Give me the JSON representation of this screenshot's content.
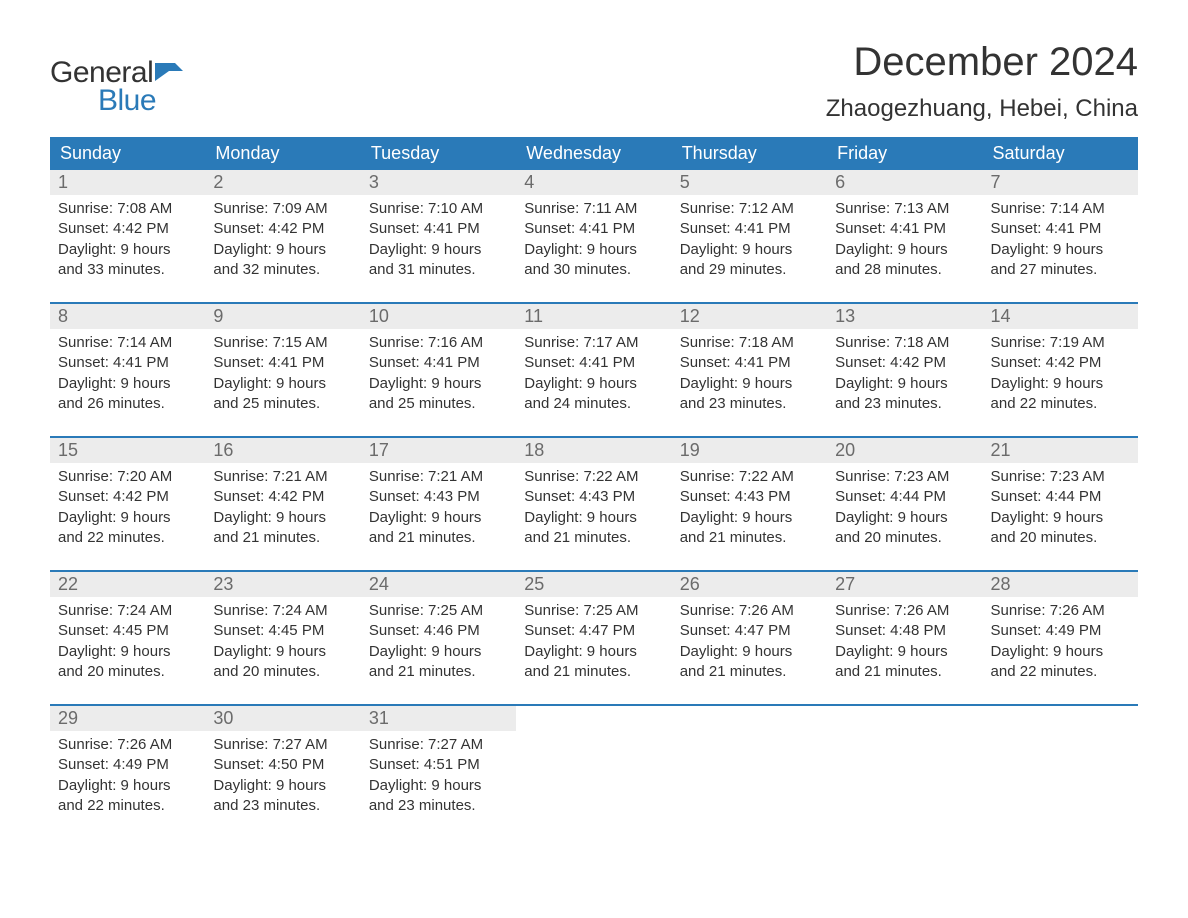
{
  "logo": {
    "text_general": "General",
    "text_blue": "Blue",
    "flag_color": "#2a7ab8"
  },
  "title": "December 2024",
  "location": "Zhaogezhuang, Hebei, China",
  "colors": {
    "header_bg": "#2a7ab8",
    "header_text": "#ffffff",
    "date_bg": "#ececec",
    "date_text": "#6b6b6b",
    "body_text": "#333333",
    "week_border": "#2a7ab8",
    "page_bg": "#ffffff"
  },
  "day_names": [
    "Sunday",
    "Monday",
    "Tuesday",
    "Wednesday",
    "Thursday",
    "Friday",
    "Saturday"
  ],
  "weeks": [
    [
      {
        "date": "1",
        "sunrise": "Sunrise: 7:08 AM",
        "sunset": "Sunset: 4:42 PM",
        "d1": "Daylight: 9 hours",
        "d2": "and 33 minutes."
      },
      {
        "date": "2",
        "sunrise": "Sunrise: 7:09 AM",
        "sunset": "Sunset: 4:42 PM",
        "d1": "Daylight: 9 hours",
        "d2": "and 32 minutes."
      },
      {
        "date": "3",
        "sunrise": "Sunrise: 7:10 AM",
        "sunset": "Sunset: 4:41 PM",
        "d1": "Daylight: 9 hours",
        "d2": "and 31 minutes."
      },
      {
        "date": "4",
        "sunrise": "Sunrise: 7:11 AM",
        "sunset": "Sunset: 4:41 PM",
        "d1": "Daylight: 9 hours",
        "d2": "and 30 minutes."
      },
      {
        "date": "5",
        "sunrise": "Sunrise: 7:12 AM",
        "sunset": "Sunset: 4:41 PM",
        "d1": "Daylight: 9 hours",
        "d2": "and 29 minutes."
      },
      {
        "date": "6",
        "sunrise": "Sunrise: 7:13 AM",
        "sunset": "Sunset: 4:41 PM",
        "d1": "Daylight: 9 hours",
        "d2": "and 28 minutes."
      },
      {
        "date": "7",
        "sunrise": "Sunrise: 7:14 AM",
        "sunset": "Sunset: 4:41 PM",
        "d1": "Daylight: 9 hours",
        "d2": "and 27 minutes."
      }
    ],
    [
      {
        "date": "8",
        "sunrise": "Sunrise: 7:14 AM",
        "sunset": "Sunset: 4:41 PM",
        "d1": "Daylight: 9 hours",
        "d2": "and 26 minutes."
      },
      {
        "date": "9",
        "sunrise": "Sunrise: 7:15 AM",
        "sunset": "Sunset: 4:41 PM",
        "d1": "Daylight: 9 hours",
        "d2": "and 25 minutes."
      },
      {
        "date": "10",
        "sunrise": "Sunrise: 7:16 AM",
        "sunset": "Sunset: 4:41 PM",
        "d1": "Daylight: 9 hours",
        "d2": "and 25 minutes."
      },
      {
        "date": "11",
        "sunrise": "Sunrise: 7:17 AM",
        "sunset": "Sunset: 4:41 PM",
        "d1": "Daylight: 9 hours",
        "d2": "and 24 minutes."
      },
      {
        "date": "12",
        "sunrise": "Sunrise: 7:18 AM",
        "sunset": "Sunset: 4:41 PM",
        "d1": "Daylight: 9 hours",
        "d2": "and 23 minutes."
      },
      {
        "date": "13",
        "sunrise": "Sunrise: 7:18 AM",
        "sunset": "Sunset: 4:42 PM",
        "d1": "Daylight: 9 hours",
        "d2": "and 23 minutes."
      },
      {
        "date": "14",
        "sunrise": "Sunrise: 7:19 AM",
        "sunset": "Sunset: 4:42 PM",
        "d1": "Daylight: 9 hours",
        "d2": "and 22 minutes."
      }
    ],
    [
      {
        "date": "15",
        "sunrise": "Sunrise: 7:20 AM",
        "sunset": "Sunset: 4:42 PM",
        "d1": "Daylight: 9 hours",
        "d2": "and 22 minutes."
      },
      {
        "date": "16",
        "sunrise": "Sunrise: 7:21 AM",
        "sunset": "Sunset: 4:42 PM",
        "d1": "Daylight: 9 hours",
        "d2": "and 21 minutes."
      },
      {
        "date": "17",
        "sunrise": "Sunrise: 7:21 AM",
        "sunset": "Sunset: 4:43 PM",
        "d1": "Daylight: 9 hours",
        "d2": "and 21 minutes."
      },
      {
        "date": "18",
        "sunrise": "Sunrise: 7:22 AM",
        "sunset": "Sunset: 4:43 PM",
        "d1": "Daylight: 9 hours",
        "d2": "and 21 minutes."
      },
      {
        "date": "19",
        "sunrise": "Sunrise: 7:22 AM",
        "sunset": "Sunset: 4:43 PM",
        "d1": "Daylight: 9 hours",
        "d2": "and 21 minutes."
      },
      {
        "date": "20",
        "sunrise": "Sunrise: 7:23 AM",
        "sunset": "Sunset: 4:44 PM",
        "d1": "Daylight: 9 hours",
        "d2": "and 20 minutes."
      },
      {
        "date": "21",
        "sunrise": "Sunrise: 7:23 AM",
        "sunset": "Sunset: 4:44 PM",
        "d1": "Daylight: 9 hours",
        "d2": "and 20 minutes."
      }
    ],
    [
      {
        "date": "22",
        "sunrise": "Sunrise: 7:24 AM",
        "sunset": "Sunset: 4:45 PM",
        "d1": "Daylight: 9 hours",
        "d2": "and 20 minutes."
      },
      {
        "date": "23",
        "sunrise": "Sunrise: 7:24 AM",
        "sunset": "Sunset: 4:45 PM",
        "d1": "Daylight: 9 hours",
        "d2": "and 20 minutes."
      },
      {
        "date": "24",
        "sunrise": "Sunrise: 7:25 AM",
        "sunset": "Sunset: 4:46 PM",
        "d1": "Daylight: 9 hours",
        "d2": "and 21 minutes."
      },
      {
        "date": "25",
        "sunrise": "Sunrise: 7:25 AM",
        "sunset": "Sunset: 4:47 PM",
        "d1": "Daylight: 9 hours",
        "d2": "and 21 minutes."
      },
      {
        "date": "26",
        "sunrise": "Sunrise: 7:26 AM",
        "sunset": "Sunset: 4:47 PM",
        "d1": "Daylight: 9 hours",
        "d2": "and 21 minutes."
      },
      {
        "date": "27",
        "sunrise": "Sunrise: 7:26 AM",
        "sunset": "Sunset: 4:48 PM",
        "d1": "Daylight: 9 hours",
        "d2": "and 21 minutes."
      },
      {
        "date": "28",
        "sunrise": "Sunrise: 7:26 AM",
        "sunset": "Sunset: 4:49 PM",
        "d1": "Daylight: 9 hours",
        "d2": "and 22 minutes."
      }
    ],
    [
      {
        "date": "29",
        "sunrise": "Sunrise: 7:26 AM",
        "sunset": "Sunset: 4:49 PM",
        "d1": "Daylight: 9 hours",
        "d2": "and 22 minutes."
      },
      {
        "date": "30",
        "sunrise": "Sunrise: 7:27 AM",
        "sunset": "Sunset: 4:50 PM",
        "d1": "Daylight: 9 hours",
        "d2": "and 23 minutes."
      },
      {
        "date": "31",
        "sunrise": "Sunrise: 7:27 AM",
        "sunset": "Sunset: 4:51 PM",
        "d1": "Daylight: 9 hours",
        "d2": "and 23 minutes."
      },
      {
        "empty": true
      },
      {
        "empty": true
      },
      {
        "empty": true
      },
      {
        "empty": true
      }
    ]
  ]
}
